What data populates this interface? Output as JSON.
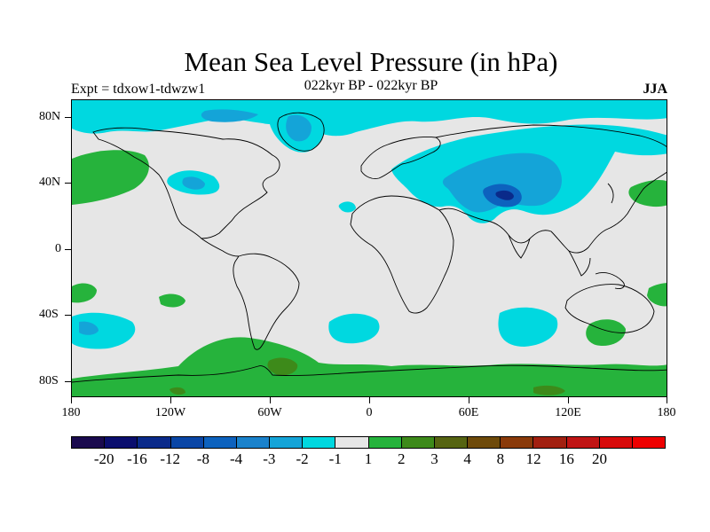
{
  "title": "Mean Sea Level Pressure (in hPa)",
  "subtitle": "022kyr BP - 022kyr BP",
  "expt_label": "Expt = tdxow1-tdwzw1",
  "season": "JJA",
  "map": {
    "ocean_color": "#e6e6e6",
    "coast_color": "#000000"
  },
  "y_ticks": [
    "80N",
    "40N",
    "0",
    "40S",
    "80S"
  ],
  "x_ticks": [
    "180",
    "120W",
    "60W",
    "0",
    "60E",
    "120E",
    "180"
  ],
  "colorbar": {
    "colors": [
      "#1a0a4e",
      "#0b0e6e",
      "#0a2a8a",
      "#0a46a6",
      "#0d62be",
      "#1a82cc",
      "#14a4d8",
      "#00d8e0",
      "#e6e6e6",
      "#26b33c",
      "#3d8a1a",
      "#566412",
      "#6e4a0a",
      "#8a3a0a",
      "#a22010",
      "#c01414",
      "#d80a0a",
      "#ee0000"
    ],
    "labels": [
      "-20",
      "-16",
      "-12",
      "-8",
      "-4",
      "-3",
      "-2",
      "-1",
      "1",
      "2",
      "3",
      "4",
      "8",
      "12",
      "16",
      "20"
    ]
  }
}
